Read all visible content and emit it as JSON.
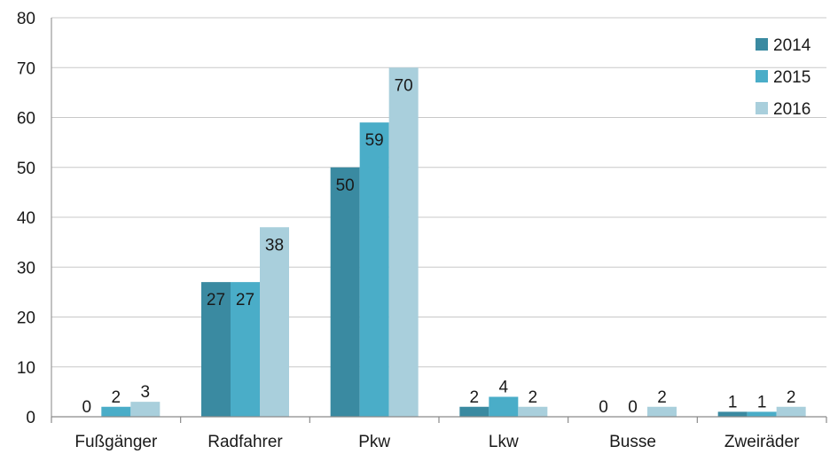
{
  "chart_data": {
    "type": "bar",
    "categories": [
      "Fußgänger",
      "Radfahrer",
      "Pkw",
      "Lkw",
      "Busse",
      "Zweiräder"
    ],
    "series": [
      {
        "name": "2014",
        "values": [
          0,
          27,
          50,
          2,
          0,
          1
        ]
      },
      {
        "name": "2015",
        "values": [
          2,
          27,
          59,
          4,
          0,
          1
        ]
      },
      {
        "name": "2016",
        "values": [
          3,
          38,
          70,
          2,
          2,
          2
        ]
      }
    ],
    "colors": [
      "#3a8aa1",
      "#4aadc8",
      "#a9cfdc"
    ],
    "ylim": [
      0,
      80
    ],
    "yticks": [
      0,
      10,
      20,
      30,
      40,
      50,
      60,
      70,
      80
    ],
    "grid": true,
    "legend": "top-right",
    "data_labels": true
  }
}
